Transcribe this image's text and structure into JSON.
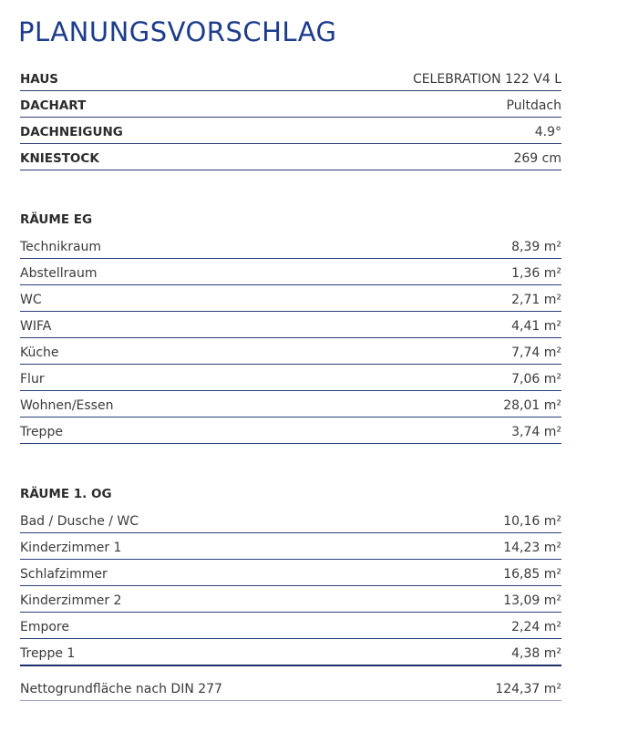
{
  "title": "PLANUNGSVORSCHLAG",
  "info": [
    [
      "HAUS",
      "CELEBRATION 122 V4 L"
    ],
    [
      "DACHART",
      "Pultdach"
    ],
    [
      "DACHNEIGUNG",
      "4.9°"
    ],
    [
      "KNIESTOCK",
      "269 cm"
    ]
  ],
  "sections": [
    {
      "heading": "RÄUME EG",
      "rows": [
        [
          "Technikraum",
          "8,39 m²"
        ],
        [
          "Abstellraum",
          "1,36 m²"
        ],
        [
          "WC",
          "2,71 m²"
        ],
        [
          "WIFA",
          "4,41 m²"
        ],
        [
          "Küche",
          "7,74 m²"
        ],
        [
          "Flur",
          "7,06 m²"
        ],
        [
          "Wohnen/Essen",
          "28,01 m²"
        ],
        [
          "Treppe",
          "3,74 m²"
        ]
      ]
    },
    {
      "heading": "RÄUME 1. OG",
      "rows": [
        [
          "Bad / Dusche / WC",
          "10,16 m²"
        ],
        [
          "Kinderzimmer 1",
          "14,23 m²"
        ],
        [
          "Schlafzimmer",
          "16,85 m²"
        ],
        [
          "Kinderzimmer 2",
          "13,09 m²"
        ],
        [
          "Empore",
          "2,24 m²"
        ],
        [
          "Treppe 1",
          "4,38 m²"
        ]
      ]
    }
  ],
  "total": [
    "Nettogrundfläche nach DIN 277",
    "124,37 m²"
  ]
}
